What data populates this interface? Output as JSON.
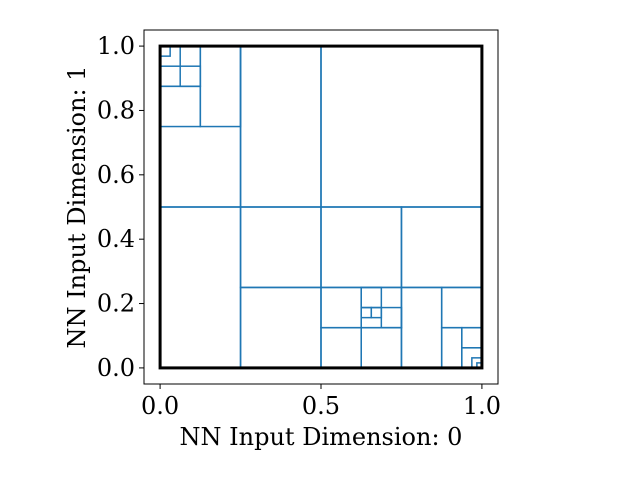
{
  "chart_data": {
    "type": "partition",
    "title": "",
    "xlabel": "NN Input Dimension: 0",
    "ylabel": "NN Input Dimension: 1",
    "xlim": [
      -0.05,
      1.05
    ],
    "ylim": [
      -0.05,
      1.05
    ],
    "xticks": [
      {
        "value": 0.0,
        "label": "0.0"
      },
      {
        "value": 0.5,
        "label": "0.5"
      },
      {
        "value": 1.0,
        "label": "1.0"
      }
    ],
    "yticks": [
      {
        "value": 0.0,
        "label": "0.0"
      },
      {
        "value": 0.2,
        "label": "0.2"
      },
      {
        "value": 0.4,
        "label": "0.4"
      },
      {
        "value": 0.6,
        "label": "0.6"
      },
      {
        "value": 0.8,
        "label": "0.8"
      },
      {
        "value": 1.0,
        "label": "1.0"
      }
    ],
    "domain_box": {
      "x": [
        0,
        1
      ],
      "y": [
        0,
        1
      ],
      "color": "#000000"
    },
    "cell_color": "#1f77b4",
    "cells": [
      [
        0.0,
        0.5,
        0.25,
        1.0
      ],
      [
        0.25,
        0.5,
        0.5,
        1.0
      ],
      [
        0.5,
        0.5,
        1.0,
        1.0
      ],
      [
        0.0,
        0.0,
        0.25,
        0.5
      ],
      [
        0.25,
        0.25,
        0.5,
        0.5
      ],
      [
        0.5,
        0.25,
        0.75,
        0.5
      ],
      [
        0.75,
        0.25,
        1.0,
        0.5
      ],
      [
        0.25,
        0.0,
        0.5,
        0.25
      ],
      [
        0.5,
        0.125,
        0.625,
        0.25
      ],
      [
        0.625,
        0.125,
        0.75,
        0.25
      ],
      [
        0.5,
        0.0,
        0.625,
        0.125
      ],
      [
        0.625,
        0.0,
        0.75,
        0.125
      ],
      [
        0.75,
        0.0,
        0.875,
        0.25
      ],
      [
        0.875,
        0.125,
        1.0,
        0.25
      ],
      [
        0.875,
        0.0,
        0.9375,
        0.125
      ],
      [
        0.9375,
        0.0625,
        1.0,
        0.125
      ],
      [
        0.9375,
        0.0,
        1.0,
        0.0625
      ],
      [
        0.0,
        0.875,
        0.125,
        1.0
      ],
      [
        0.125,
        0.75,
        0.25,
        1.0
      ],
      [
        0.0,
        0.75,
        0.125,
        0.875
      ],
      [
        0.0,
        0.9375,
        0.0625,
        1.0
      ],
      [
        0.0625,
        0.875,
        0.125,
        0.9375
      ],
      [
        0.0,
        0.96875,
        0.03125,
        1.0
      ],
      [
        0.625,
        0.1875,
        0.6875,
        0.25
      ],
      [
        0.6875,
        0.125,
        0.75,
        0.1875
      ],
      [
        0.625,
        0.15625,
        0.65625,
        0.1875
      ],
      [
        0.65625,
        0.15625,
        0.6875,
        0.1875
      ],
      [
        0.96875,
        0.0,
        1.0,
        0.03125
      ],
      [
        0.984375,
        0.0,
        1.0,
        0.015625
      ]
    ]
  }
}
